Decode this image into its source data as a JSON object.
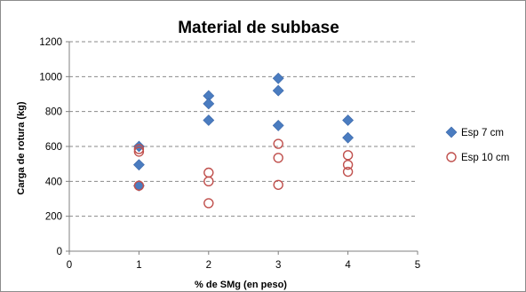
{
  "chart_data": {
    "type": "scatter",
    "title": "Material de subbase",
    "xlabel": "% de SMg (en peso)",
    "ylabel": "Carga de rotura (kg)",
    "xlim": [
      0,
      5
    ],
    "ylim": [
      0,
      1200
    ],
    "xticks": [
      0,
      1,
      2,
      3,
      4,
      5
    ],
    "yticks": [
      0,
      200,
      400,
      600,
      800,
      1000,
      1200
    ],
    "grid": "horizontal dashed",
    "legend_position": "right",
    "series": [
      {
        "name": "Esp 7 cm",
        "marker": "diamond",
        "color": "#4a7cc0",
        "points": [
          {
            "x": 1,
            "y": 600
          },
          {
            "x": 1,
            "y": 495
          },
          {
            "x": 1,
            "y": 375
          },
          {
            "x": 2,
            "y": 890
          },
          {
            "x": 2,
            "y": 845
          },
          {
            "x": 2,
            "y": 750
          },
          {
            "x": 3,
            "y": 990
          },
          {
            "x": 3,
            "y": 920
          },
          {
            "x": 3,
            "y": 720
          },
          {
            "x": 4,
            "y": 750
          },
          {
            "x": 4,
            "y": 650
          }
        ]
      },
      {
        "name": "Esp 10 cm",
        "marker": "open-circle",
        "color": "#c0504d",
        "points": [
          {
            "x": 1,
            "y": 585
          },
          {
            "x": 1,
            "y": 570
          },
          {
            "x": 1,
            "y": 375
          },
          {
            "x": 2,
            "y": 450
          },
          {
            "x": 2,
            "y": 400
          },
          {
            "x": 2,
            "y": 275
          },
          {
            "x": 3,
            "y": 615
          },
          {
            "x": 3,
            "y": 535
          },
          {
            "x": 3,
            "y": 380
          },
          {
            "x": 4,
            "y": 550
          },
          {
            "x": 4,
            "y": 495
          },
          {
            "x": 4,
            "y": 455
          }
        ]
      }
    ]
  }
}
